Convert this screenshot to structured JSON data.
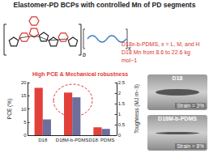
{
  "header": {
    "title": "Elastomer-PD BCPs with controlled Mn of PD segments"
  },
  "structure": {
    "labels": [
      "b",
      "x"
    ]
  },
  "info": {
    "line1": "D18x-b-PDMS, x = L, M, and H",
    "line2": "D18 Mn from 8.6 to 22.6 kg mol−1"
  },
  "chart_data": {
    "type": "bar",
    "categories": [
      "D18",
      "D18M-b-PDMS",
      "D18: PDMS"
    ],
    "series": [
      {
        "name": "PCE",
        "color": "#e2403a",
        "values": [
          18.0,
          16.2,
          3.0
        ]
      },
      {
        "name": "Toughness",
        "color": "#6e6f9c",
        "values": [
          0.75,
          1.8,
          0.3
        ],
        "axis": "y2"
      }
    ],
    "ylabel": "PCE (%)",
    "y2label": "Toughness (MJ m−3)",
    "ylim": [
      0,
      20
    ],
    "yticks": [
      0,
      5,
      10,
      15,
      20
    ],
    "y2lim": [
      0,
      2.5
    ],
    "y2ticks": [
      0,
      0.5,
      1,
      1.5,
      2,
      2.5
    ],
    "grid": false,
    "annotation": {
      "text": "High PCE & Mechanical robustness",
      "color": "#e2403a"
    }
  },
  "films": [
    {
      "name": "D18",
      "strain": "Strain = 3%"
    },
    {
      "name": "D18M-b-PDMS",
      "strain": "Strain = 8%"
    }
  ]
}
